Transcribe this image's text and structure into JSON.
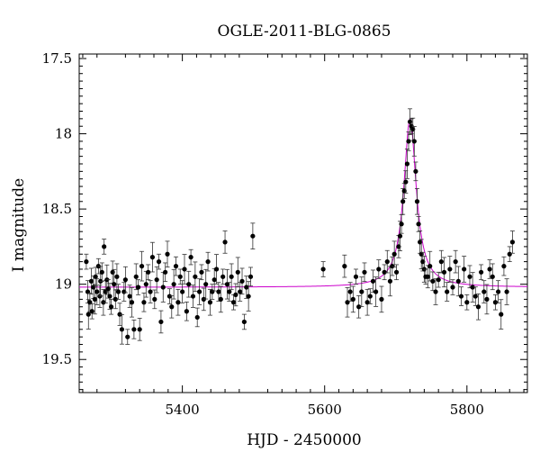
{
  "chart_data": {
    "type": "scatter",
    "title": "OGLE-2011-BLG-0865",
    "xlabel": "HJD - 2450000",
    "ylabel": "I magnitude",
    "xlim": [
      5255,
      5885
    ],
    "ylim": [
      19.72,
      17.47
    ],
    "y_inverted": true,
    "x_ticks": [
      5400,
      5600,
      5800
    ],
    "y_ticks": [
      17.5,
      18,
      18.5,
      19,
      19.5
    ],
    "x_tick_labels": [
      "5400",
      "5600",
      "5800"
    ],
    "y_tick_labels": [
      "17.5",
      "18",
      "18.5",
      "19",
      "19.5"
    ],
    "grid": false,
    "colors": {
      "points": "#000000",
      "model": "#cc00cc",
      "axes": "#000000"
    },
    "model": {
      "name": "",
      "t0": 5720,
      "baseline": 19.02,
      "peak": 17.9,
      "tE": 10.6
    },
    "series": [
      {
        "name": "",
        "x": [
          5265,
          5267,
          5268,
          5270,
          5272,
          5273,
          5275,
          5277,
          5278,
          5280,
          5282,
          5284,
          5285,
          5287,
          5289,
          5290,
          5292,
          5294,
          5296,
          5298,
          5300,
          5302,
          5304,
          5306,
          5308,
          5310,
          5312,
          5315,
          5318,
          5320,
          5323,
          5326,
          5329,
          5332,
          5335,
          5338,
          5340,
          5343,
          5346,
          5349,
          5352,
          5355,
          5358,
          5361,
          5364,
          5367,
          5370,
          5373,
          5376,
          5379,
          5382,
          5385,
          5388,
          5391,
          5394,
          5397,
          5400,
          5403,
          5406,
          5409,
          5412,
          5415,
          5418,
          5421,
          5424,
          5427,
          5430,
          5433,
          5436,
          5439,
          5442,
          5445,
          5448,
          5451,
          5454,
          5457,
          5460,
          5463,
          5466,
          5469,
          5472,
          5475,
          5478,
          5481,
          5484,
          5487,
          5490,
          5493,
          5496,
          5499,
          5598,
          5628,
          5632,
          5636,
          5640,
          5644,
          5648,
          5652,
          5656,
          5660,
          5664,
          5668,
          5672,
          5676,
          5680,
          5684,
          5688,
          5692,
          5695,
          5698,
          5701,
          5704,
          5706,
          5708,
          5710,
          5712,
          5714,
          5716,
          5718,
          5720,
          5722,
          5724,
          5726,
          5728,
          5730,
          5732,
          5734,
          5736,
          5738,
          5740,
          5742,
          5745,
          5748,
          5752,
          5756,
          5760,
          5764,
          5768,
          5772,
          5776,
          5780,
          5784,
          5788,
          5792,
          5796,
          5800,
          5804,
          5808,
          5812,
          5816,
          5820,
          5824,
          5828,
          5832,
          5836,
          5840,
          5844,
          5848,
          5852,
          5856,
          5860,
          5864
        ],
        "y": [
          18.85,
          19.05,
          19.2,
          19.12,
          18.98,
          19.18,
          19.02,
          19.1,
          18.95,
          19.05,
          18.88,
          19.08,
          18.98,
          18.92,
          19.12,
          18.75,
          19.05,
          18.97,
          19.03,
          19.08,
          19.15,
          18.92,
          19.0,
          19.1,
          18.95,
          19.05,
          19.2,
          19.3,
          19.05,
          18.97,
          19.35,
          19.08,
          19.12,
          19.3,
          18.95,
          19.02,
          19.3,
          18.88,
          19.12,
          19.0,
          18.92,
          19.05,
          18.82,
          19.1,
          18.97,
          18.85,
          19.25,
          19.02,
          18.92,
          18.8,
          19.08,
          19.15,
          19.0,
          18.88,
          19.12,
          18.95,
          19.05,
          18.9,
          19.18,
          19.0,
          18.82,
          19.08,
          18.95,
          19.22,
          19.05,
          18.92,
          19.1,
          19.0,
          18.85,
          19.12,
          19.05,
          18.97,
          18.9,
          19.05,
          19.1,
          18.95,
          18.72,
          19.0,
          19.05,
          18.95,
          19.12,
          19.07,
          18.92,
          19.05,
          18.98,
          19.25,
          19.02,
          19.08,
          18.95,
          18.68,
          18.9,
          18.88,
          19.12,
          19.05,
          19.1,
          18.95,
          19.15,
          19.05,
          18.92,
          19.12,
          19.08,
          18.98,
          19.05,
          18.9,
          19.1,
          18.92,
          18.85,
          18.98,
          18.88,
          18.8,
          18.92,
          18.75,
          18.68,
          18.6,
          18.45,
          18.38,
          18.32,
          18.2,
          18.05,
          17.92,
          17.95,
          17.97,
          18.05,
          18.25,
          18.45,
          18.6,
          18.72,
          18.8,
          18.85,
          18.9,
          18.95,
          18.95,
          18.88,
          18.98,
          19.05,
          18.97,
          18.85,
          18.92,
          19.05,
          18.9,
          19.02,
          18.85,
          18.98,
          19.08,
          18.9,
          19.12,
          18.95,
          19.02,
          19.08,
          19.15,
          18.92,
          19.05,
          19.1,
          18.9,
          18.95,
          19.12,
          19.05,
          19.2,
          18.88,
          19.05,
          18.8,
          18.72
        ]
      }
    ]
  }
}
